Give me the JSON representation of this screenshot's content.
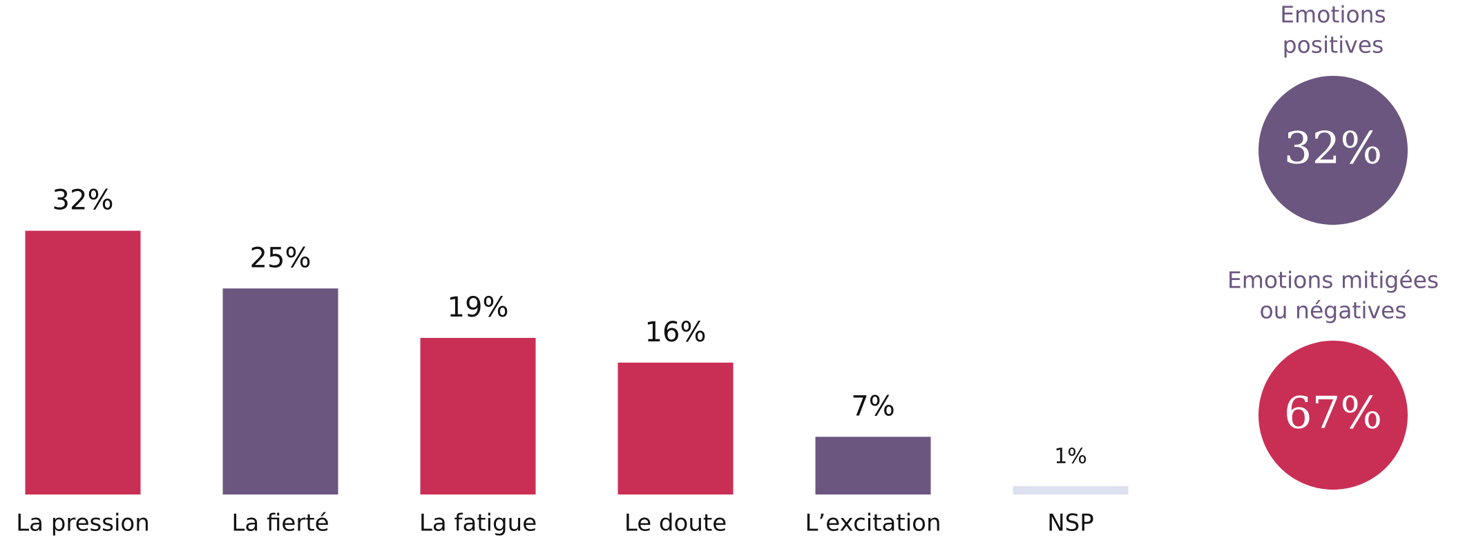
{
  "chart_data": {
    "type": "bar",
    "categories": [
      "La pression",
      "La fierté",
      "La fatigue",
      "Le doute",
      "L’excitation",
      "NSP"
    ],
    "values": [
      32,
      25,
      19,
      16,
      7,
      1
    ],
    "value_labels": [
      "32%",
      "25%",
      "19%",
      "16%",
      "7%",
      "1%"
    ],
    "colors": [
      "#c92f55",
      "#6b5680",
      "#c92f55",
      "#c92f55",
      "#6b5680",
      "#dde0ee"
    ]
  },
  "summary": [
    {
      "label": [
        "Emotions",
        "positives"
      ],
      "value": 32,
      "value_label": "32%",
      "color": "#6b5680"
    },
    {
      "label": [
        "Emotions mitigées",
        "ou négatives"
      ],
      "value": 67,
      "value_label": "67%",
      "color": "#c92f55"
    }
  ]
}
